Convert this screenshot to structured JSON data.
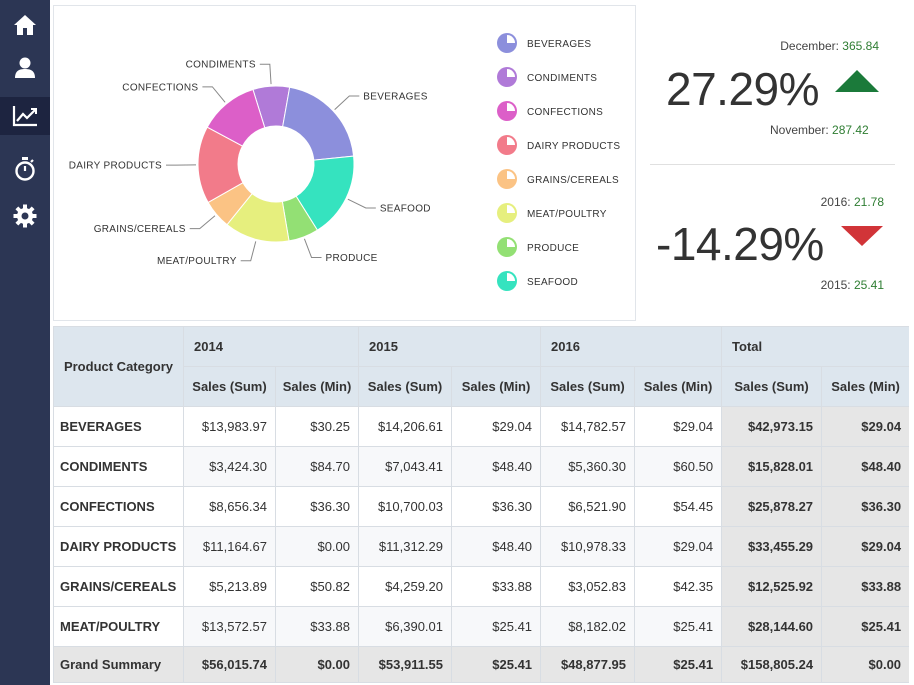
{
  "sidebar": {
    "items": [
      {
        "icon": "home-icon"
      },
      {
        "icon": "user-icon"
      },
      {
        "icon": "chart-line-icon",
        "active": true
      },
      {
        "icon": "stopwatch-icon"
      },
      {
        "icon": "gear-icon"
      }
    ]
  },
  "chart_data": {
    "type": "pie",
    "donut": true,
    "categories": [
      "BEVERAGES",
      "CONDIMENTS",
      "CONFECTIONS",
      "DAIRY PRODUCTS",
      "GRAINS/CEREALS",
      "MEAT/POULTRY",
      "PRODUCE",
      "SEAFOOD"
    ],
    "values": [
      42973.15,
      15828.01,
      25878.27,
      33455.29,
      12525.92,
      28144.6,
      13000,
      37000
    ],
    "colors": [
      "#8c8fdc",
      "#b07ad8",
      "#dc5fc8",
      "#f27b8a",
      "#fbc384",
      "#e6ef7e",
      "#93e074",
      "#35e3bf"
    ],
    "legend_position": "right"
  },
  "kpi1": {
    "current_label": "December:",
    "current_value": "365.84",
    "percent": "27.29%",
    "trend": "up",
    "previous_label": "November:",
    "previous_value": "287.42",
    "trend_color": "#1b7a3a"
  },
  "kpi2": {
    "current_label": "2016:",
    "current_value": "21.78",
    "percent": "-14.29%",
    "trend": "down",
    "previous_label": "2015:",
    "previous_value": "25.41",
    "trend_color": "#d13438"
  },
  "table": {
    "row_header": "Product Category",
    "years": [
      "2014",
      "2015",
      "2016",
      "Total"
    ],
    "measures": [
      "Sales (Sum)",
      "Sales (Min)"
    ],
    "rows": [
      {
        "label": "BEVERAGES",
        "cells": [
          "$13,983.97",
          "$30.25",
          "$14,206.61",
          "$29.04",
          "$14,782.57",
          "$29.04"
        ],
        "total": [
          "$42,973.15",
          "$29.04"
        ]
      },
      {
        "label": "CONDIMENTS",
        "cells": [
          "$3,424.30",
          "$84.70",
          "$7,043.41",
          "$48.40",
          "$5,360.30",
          "$60.50"
        ],
        "total": [
          "$15,828.01",
          "$48.40"
        ]
      },
      {
        "label": "CONFECTIONS",
        "cells": [
          "$8,656.34",
          "$36.30",
          "$10,700.03",
          "$36.30",
          "$6,521.90",
          "$54.45"
        ],
        "total": [
          "$25,878.27",
          "$36.30"
        ]
      },
      {
        "label": "DAIRY PRODUCTS",
        "cells": [
          "$11,164.67",
          "$0.00",
          "$11,312.29",
          "$48.40",
          "$10,978.33",
          "$29.04"
        ],
        "total": [
          "$33,455.29",
          "$29.04"
        ]
      },
      {
        "label": "GRAINS/CEREALS",
        "cells": [
          "$5,213.89",
          "$50.82",
          "$4,259.20",
          "$33.88",
          "$3,052.83",
          "$42.35"
        ],
        "total": [
          "$12,525.92",
          "$33.88"
        ]
      },
      {
        "label": "MEAT/POULTRY",
        "cells": [
          "$13,572.57",
          "$33.88",
          "$6,390.01",
          "$25.41",
          "$8,182.02",
          "$25.41"
        ],
        "total": [
          "$28,144.60",
          "$25.41"
        ]
      }
    ],
    "grand": {
      "label": "Grand Summary",
      "cells": [
        "$56,015.74",
        "$0.00",
        "$53,911.55",
        "$25.41",
        "$48,877.95",
        "$25.41"
      ],
      "total": [
        "$158,805.24",
        "$0.00"
      ]
    }
  }
}
